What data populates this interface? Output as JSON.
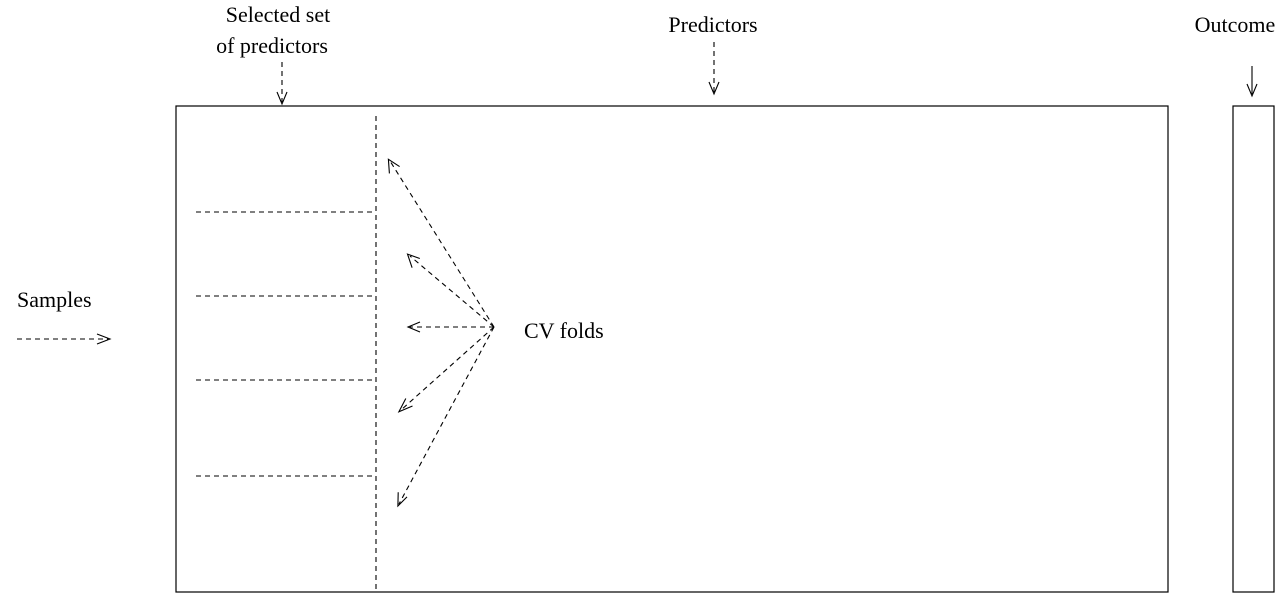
{
  "labels": {
    "selected_line1": "Selected set",
    "selected_line2": "of predictors",
    "predictors": "Predictors",
    "outcome": "Outcome",
    "samples": "Samples",
    "cv_folds": "CV folds"
  },
  "cv_fold_count": 5
}
